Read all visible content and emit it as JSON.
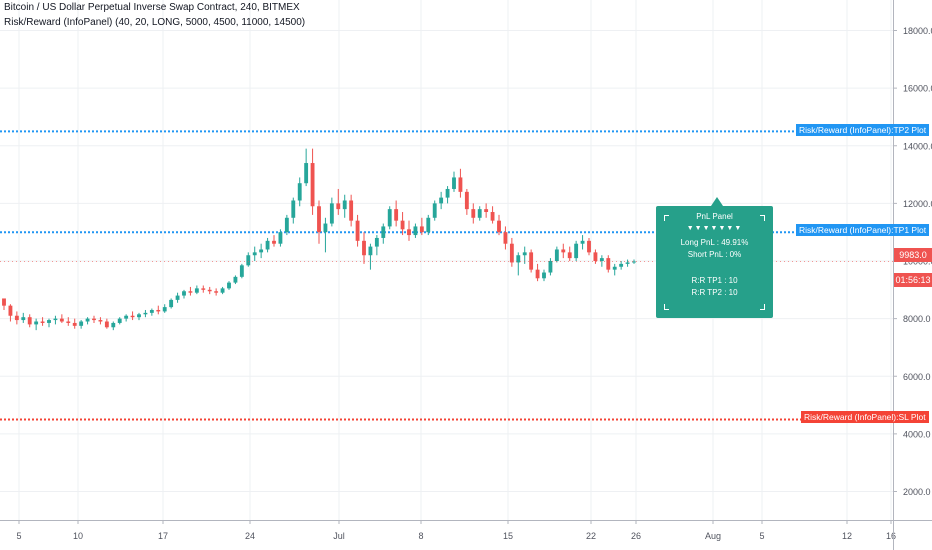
{
  "header": {
    "title": "Bitcoin / US Dollar Perpetual Inverse Swap Contract, 240, BITMEX",
    "indicator": "Risk/Reward (InfoPanel) (40, 20, LONG, 5000, 4500, 11000, 14500)"
  },
  "price_axis": {
    "labels": [
      "18000.0",
      "16000.0",
      "14000.0",
      "12000.0",
      "10000.0",
      "8000.0",
      "6000.0",
      "4000.0",
      "2000.0"
    ],
    "current_price": "9983.0",
    "countdown": "01:56:13"
  },
  "time_axis": {
    "labels": [
      "5",
      "10",
      "17",
      "24",
      "Jul",
      "8",
      "15",
      "22",
      "26",
      "Aug",
      "5",
      "12",
      "16"
    ]
  },
  "plots": {
    "tp2": {
      "label": "Risk/Reward (InfoPanel):TP2 Plot",
      "value": 14500,
      "color": "#2196f3"
    },
    "tp1": {
      "label": "Risk/Reward (InfoPanel):TP1 Plot",
      "value": 11000,
      "color": "#2196f3"
    },
    "sl": {
      "label": "Risk/Reward (InfoPanel):SL Plot",
      "value": 4500,
      "color": "#f44336"
    }
  },
  "panel": {
    "title": "PnL Panel",
    "arrows": "▼▼▼▼▼▼▼",
    "long_pnl": "Long PnL : 49.91%",
    "short_pnl": "Short PnL : 0%",
    "rr_tp1": "R:R TP1 : 10",
    "rr_tp2": "R:R TP2 : 10",
    "color": "#26a08a"
  },
  "chart_data": {
    "type": "candlestick",
    "series_ohlc": [
      [
        8700,
        8700,
        8300,
        8450
      ],
      [
        8450,
        8500,
        7900,
        8100
      ],
      [
        8100,
        8250,
        7800,
        7950
      ],
      [
        7950,
        8200,
        7850,
        8050
      ],
      [
        8050,
        8150,
        7700,
        7800
      ],
      [
        7800,
        8000,
        7600,
        7900
      ],
      [
        7900,
        8050,
        7750,
        7850
      ],
      [
        7850,
        8000,
        7700,
        7950
      ],
      [
        7950,
        8100,
        7800,
        8000
      ],
      [
        8000,
        8150,
        7850,
        7900
      ],
      [
        7900,
        8050,
        7750,
        7850
      ],
      [
        7850,
        8000,
        7650,
        7750
      ],
      [
        7750,
        7950,
        7650,
        7900
      ],
      [
        7900,
        8050,
        7800,
        8000
      ],
      [
        8000,
        8100,
        7850,
        7950
      ],
      [
        7950,
        8050,
        7800,
        7900
      ],
      [
        7900,
        8000,
        7650,
        7700
      ],
      [
        7700,
        7900,
        7600,
        7850
      ],
      [
        7850,
        8050,
        7800,
        8000
      ],
      [
        8000,
        8150,
        7900,
        8100
      ],
      [
        8100,
        8250,
        7950,
        8050
      ],
      [
        8050,
        8200,
        7950,
        8150
      ],
      [
        8150,
        8300,
        8050,
        8200
      ],
      [
        8200,
        8350,
        8100,
        8300
      ],
      [
        8300,
        8450,
        8150,
        8250
      ],
      [
        8250,
        8500,
        8200,
        8400
      ],
      [
        8400,
        8700,
        8350,
        8650
      ],
      [
        8650,
        8900,
        8550,
        8800
      ],
      [
        8800,
        9000,
        8700,
        8950
      ],
      [
        8950,
        9100,
        8800,
        8900
      ],
      [
        8900,
        9150,
        8850,
        9050
      ],
      [
        9050,
        9150,
        8900,
        9000
      ],
      [
        9000,
        9100,
        8850,
        8950
      ],
      [
        8950,
        9050,
        8800,
        8900
      ],
      [
        8900,
        9100,
        8850,
        9050
      ],
      [
        9050,
        9300,
        9000,
        9250
      ],
      [
        9250,
        9500,
        9200,
        9450
      ],
      [
        9450,
        9900,
        9400,
        9850
      ],
      [
        9850,
        10300,
        9800,
        10200
      ],
      [
        10200,
        10500,
        10000,
        10300
      ],
      [
        10300,
        10600,
        10100,
        10400
      ],
      [
        10400,
        10800,
        10300,
        10700
      ],
      [
        10700,
        10900,
        10500,
        10600
      ],
      [
        10600,
        11100,
        10500,
        11000
      ],
      [
        11000,
        11600,
        10900,
        11500
      ],
      [
        11500,
        12200,
        11300,
        12100
      ],
      [
        12100,
        12900,
        11900,
        12700
      ],
      [
        12700,
        13900,
        12600,
        13400
      ],
      [
        13400,
        13900,
        11600,
        11900
      ],
      [
        11900,
        12100,
        10600,
        11000
      ],
      [
        11000,
        11500,
        10300,
        11300
      ],
      [
        11300,
        12200,
        11200,
        12000
      ],
      [
        12000,
        12500,
        11600,
        11800
      ],
      [
        11800,
        12300,
        11500,
        12100
      ],
      [
        12100,
        12300,
        11200,
        11400
      ],
      [
        11400,
        11600,
        10500,
        10700
      ],
      [
        10700,
        11000,
        9900,
        10200
      ],
      [
        10200,
        10600,
        9700,
        10500
      ],
      [
        10500,
        10900,
        10200,
        10800
      ],
      [
        10800,
        11300,
        10600,
        11200
      ],
      [
        11200,
        11900,
        11100,
        11800
      ],
      [
        11800,
        12100,
        11200,
        11400
      ],
      [
        11400,
        11700,
        10900,
        11100
      ],
      [
        11100,
        11400,
        10700,
        10900
      ],
      [
        10900,
        11300,
        10800,
        11200
      ],
      [
        11200,
        11500,
        10900,
        11000
      ],
      [
        11000,
        11600,
        10900,
        11500
      ],
      [
        11500,
        12100,
        11400,
        12000
      ],
      [
        12000,
        12400,
        11800,
        12200
      ],
      [
        12200,
        12600,
        12000,
        12500
      ],
      [
        12500,
        13100,
        12400,
        12900
      ],
      [
        12900,
        13200,
        12200,
        12400
      ],
      [
        12400,
        12500,
        11600,
        11800
      ],
      [
        11800,
        12000,
        11300,
        11500
      ],
      [
        11500,
        11900,
        11400,
        11800
      ],
      [
        11800,
        12000,
        11500,
        11700
      ],
      [
        11700,
        11900,
        11300,
        11400
      ],
      [
        11400,
        11600,
        10900,
        11000
      ],
      [
        11000,
        11200,
        10400,
        10600
      ],
      [
        10600,
        10800,
        9800,
        9950
      ],
      [
        9950,
        10300,
        9500,
        10200
      ],
      [
        10200,
        10500,
        9900,
        10300
      ],
      [
        10300,
        10400,
        9600,
        9700
      ],
      [
        9700,
        9900,
        9300,
        9400
      ],
      [
        9400,
        9700,
        9300,
        9600
      ],
      [
        9600,
        10100,
        9500,
        10000
      ],
      [
        10000,
        10500,
        9950,
        10400
      ],
      [
        10400,
        10600,
        10100,
        10300
      ],
      [
        10300,
        10500,
        10000,
        10100
      ],
      [
        10100,
        10700,
        10000,
        10600
      ],
      [
        10600,
        10900,
        10400,
        10700
      ],
      [
        10700,
        10800,
        10200,
        10300
      ],
      [
        10300,
        10400,
        9900,
        10000
      ],
      [
        10000,
        10200,
        9800,
        10100
      ],
      [
        10100,
        10200,
        9600,
        9700
      ],
      [
        9700,
        9900,
        9500,
        9800
      ],
      [
        9800,
        10000,
        9700,
        9900
      ],
      [
        9900,
        10050,
        9800,
        9950
      ],
      [
        9950,
        10050,
        9900,
        9983
      ]
    ],
    "horizontal_lines": [
      {
        "name": "Risk/Reward (InfoPanel):TP2 Plot",
        "value": 14500
      },
      {
        "name": "Risk/Reward (InfoPanel):TP1 Plot",
        "value": 11000
      },
      {
        "name": "Risk/Reward (InfoPanel):SL Plot",
        "value": 4500
      }
    ],
    "ylim": [
      1000,
      19000
    ],
    "grid": true,
    "up_color": "#26a69a",
    "down_color": "#ef5350"
  }
}
